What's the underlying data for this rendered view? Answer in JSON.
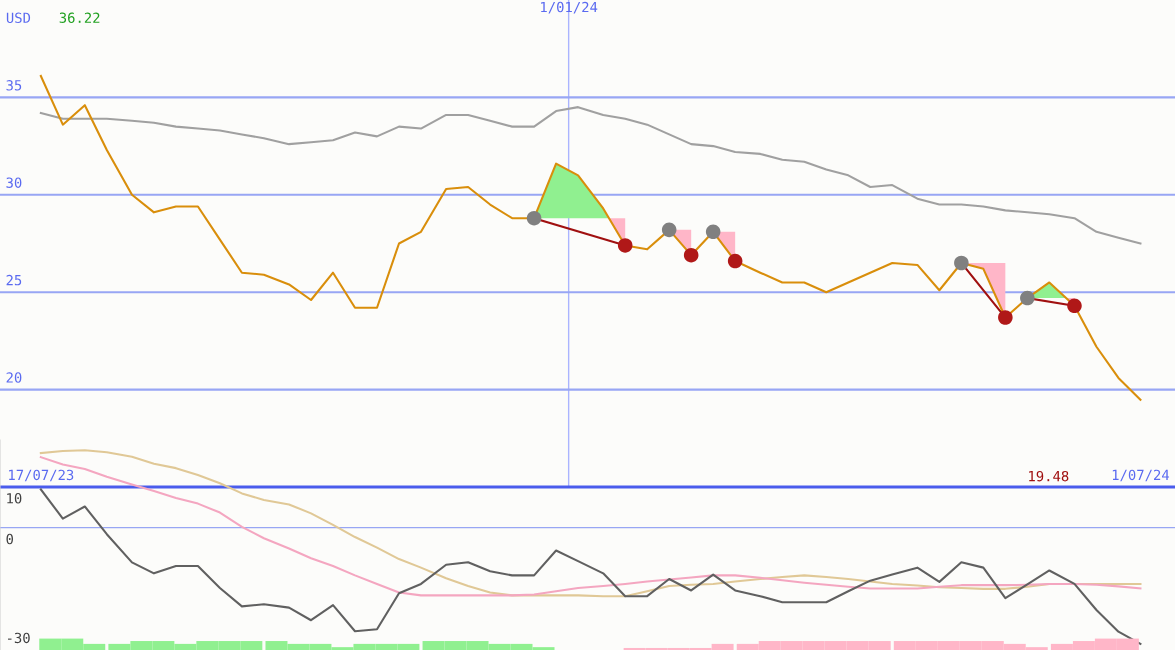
{
  "chart_data": [
    {
      "type": "line",
      "ylabel": "USD",
      "annotations": [
        "36.22",
        "19.48"
      ],
      "x": [
        "2023-07-17",
        "2023-07-24",
        "2023-07-31",
        "2023-08-07",
        "2023-08-15",
        "2023-08-22",
        "2023-08-29",
        "2023-09-05",
        "2023-09-12",
        "2023-09-19",
        "2023-09-26",
        "2023-10-04",
        "2023-10-11",
        "2023-10-18",
        "2023-10-25",
        "2023-11-01",
        "2023-11-08",
        "2023-11-15",
        "2023-11-23",
        "2023-11-30",
        "2023-12-07",
        "2023-12-14",
        "2023-12-21",
        "2023-12-28",
        "2024-01-04",
        "2024-01-12",
        "2024-01-19",
        "2024-01-26",
        "2024-02-02",
        "2024-02-09",
        "2024-02-16",
        "2024-02-23",
        "2024-03-02",
        "2024-03-09",
        "2024-03-16",
        "2024-03-23",
        "2024-03-30",
        "2024-04-06",
        "2024-04-13",
        "2024-04-21",
        "2024-04-28",
        "2024-05-05",
        "2024-05-12",
        "2024-05-19",
        "2024-05-26",
        "2024-06-02",
        "2024-06-10",
        "2024-06-17",
        "2024-06-24",
        "2024-07-01"
      ],
      "series": [
        {
          "color": "#a0a0a0",
          "values": [
            34.2,
            33.9,
            33.9,
            33.9,
            33.8,
            33.7,
            33.5,
            33.4,
            33.3,
            33.1,
            32.9,
            32.6,
            32.7,
            32.8,
            33.2,
            33.0,
            33.5,
            33.4,
            34.1,
            34.1,
            33.8,
            33.5,
            33.5,
            34.3,
            34.5,
            34.1,
            33.9,
            33.6,
            33.1,
            32.6,
            32.5,
            32.2,
            32.1,
            31.8,
            31.7,
            31.3,
            31.0,
            30.4,
            30.5,
            29.8,
            29.5,
            29.5,
            29.4,
            29.2,
            29.1,
            29.0,
            28.8,
            28.1,
            27.8,
            27.5
          ]
        },
        {
          "color": "#d98e0b",
          "values": [
            36.1,
            33.6,
            34.6,
            32.3,
            30.0,
            29.1,
            29.4,
            29.4,
            27.7,
            26.0,
            25.9,
            25.4,
            24.6,
            26.0,
            24.2,
            24.2,
            27.5,
            28.1,
            30.3,
            30.4,
            29.5,
            28.8,
            28.8,
            31.6,
            31.0,
            29.3,
            27.4,
            27.2,
            28.2,
            26.9,
            28.1,
            26.6,
            26.0,
            25.5,
            25.5,
            25.0,
            25.5,
            26.0,
            26.5,
            26.4,
            25.1,
            26.5,
            26.2,
            23.7,
            24.7,
            25.5,
            24.3,
            22.2,
            20.6,
            19.48
          ]
        },
        {
          "color": "#a01010",
          "x": [
            "2023-12-21",
            "2024-01-19"
          ],
          "values": [
            28.8,
            27.4
          ]
        },
        {
          "color": "#a01010",
          "x": [
            "2024-05-05",
            "2024-05-19"
          ],
          "values": [
            26.5,
            23.7
          ]
        },
        {
          "color": "#a01010",
          "x": [
            "2024-05-26",
            "2024-06-10"
          ],
          "values": [
            24.7,
            24.3
          ]
        },
        {
          "type": "scatter",
          "marker": "circle",
          "color": "#808080",
          "x": [
            "2023-12-21",
            "2024-02-02",
            "2024-02-16",
            "2024-05-05",
            "2024-05-26"
          ],
          "values": [
            28.8,
            28.2,
            28.1,
            26.5,
            24.7
          ]
        },
        {
          "type": "scatter",
          "marker": "circle",
          "color": "#b01818",
          "x": [
            "2024-01-19",
            "2024-02-09",
            "2024-02-23",
            "2024-05-19",
            "2024-06-10"
          ],
          "values": [
            27.4,
            26.9,
            26.6,
            23.7,
            24.3
          ]
        }
      ],
      "xlim": [
        "2023-07-04",
        "2024-07-12"
      ],
      "xticks": [
        {
          "value": "2023-07-17",
          "label": "17/07/23"
        },
        {
          "value": "2024-07-01",
          "label": "1/07/24"
        }
      ],
      "ylim": [
        15,
        40
      ],
      "yticks": [
        20,
        25,
        30,
        35
      ],
      "grid": "y",
      "ref_lines": [
        {
          "axis": "x",
          "value": "2024-01-01",
          "label": "1/01/24",
          "color": "#aab4ff"
        }
      ]
    },
    {
      "type": "line",
      "tick_labels": "y",
      "x": [
        "2023-07-17",
        "2023-07-24",
        "2023-07-31",
        "2023-08-07",
        "2023-08-15",
        "2023-08-22",
        "2023-08-29",
        "2023-09-05",
        "2023-09-12",
        "2023-09-19",
        "2023-09-26",
        "2023-10-04",
        "2023-10-11",
        "2023-10-18",
        "2023-10-25",
        "2023-11-01",
        "2023-11-08",
        "2023-11-15",
        "2023-11-23",
        "2023-11-30",
        "2023-12-07",
        "2023-12-14",
        "2023-12-21",
        "2023-12-28",
        "2024-01-04",
        "2024-01-12",
        "2024-01-19",
        "2024-01-26",
        "2024-02-02",
        "2024-02-09",
        "2024-02-16",
        "2024-02-23",
        "2024-03-02",
        "2024-03-09",
        "2024-03-16",
        "2024-03-23",
        "2024-03-30",
        "2024-04-06",
        "2024-04-13",
        "2024-04-21",
        "2024-04-28",
        "2024-05-05",
        "2024-05-12",
        "2024-05-19",
        "2024-05-26",
        "2024-06-02",
        "2024-06-10",
        "2024-06-17",
        "2024-06-24",
        "2024-07-01"
      ],
      "series": [
        {
          "color": "#e0c896",
          "values": [
            18.3,
            18.8,
            19.0,
            18.5,
            17.4,
            15.7,
            14.6,
            12.9,
            10.9,
            8.4,
            6.8,
            5.7,
            3.5,
            0.7,
            -2.3,
            -4.9,
            -7.7,
            -9.8,
            -12.4,
            -14.3,
            -15.9,
            -16.6,
            -16.6,
            -16.6,
            -16.6,
            -16.8,
            -16.8,
            -15.6,
            -14.3,
            -14.0,
            -13.8,
            -13.2,
            -12.6,
            -12.1,
            -11.7,
            -12.1,
            -12.6,
            -13.2,
            -13.8,
            -14.2,
            -14.6,
            -14.8,
            -15.0,
            -15.0,
            -14.5,
            -13.8,
            -13.8,
            -13.8,
            -13.8,
            -13.8
          ]
        },
        {
          "color": "#f4a6c0",
          "values": [
            17.3,
            15.5,
            14.4,
            12.5,
            10.6,
            9.0,
            7.3,
            5.9,
            3.7,
            0.2,
            -2.6,
            -5.1,
            -7.5,
            -9.4,
            -11.7,
            -13.8,
            -15.9,
            -16.6,
            -16.6,
            -16.6,
            -16.6,
            -16.6,
            -16.4,
            -15.6,
            -14.8,
            -14.3,
            -13.8,
            -13.2,
            -12.7,
            -12.2,
            -11.7,
            -11.7,
            -12.3,
            -12.9,
            -13.5,
            -14.0,
            -14.5,
            -14.9,
            -14.9,
            -14.9,
            -14.5,
            -14.1,
            -14.1,
            -14.1,
            -14.0,
            -13.8,
            -13.8,
            -14.0,
            -14.4,
            -14.9
          ]
        },
        {
          "color": "#606060",
          "values": [
            9.4,
            2.2,
            5.2,
            -1.6,
            -8.5,
            -11.2,
            -9.4,
            -9.4,
            -14.8,
            -19.3,
            -18.8,
            -19.6,
            -22.7,
            -19.0,
            -25.4,
            -24.9,
            -16.1,
            -13.8,
            -9.1,
            -8.5,
            -10.7,
            -11.7,
            -11.7,
            -5.6,
            -8.2,
            -11.2,
            -16.8,
            -16.8,
            -12.6,
            -15.4,
            -11.5,
            -15.4,
            -16.8,
            -18.3,
            -18.3,
            -18.3,
            -15.6,
            -13.0,
            -11.5,
            -9.8,
            -13.3,
            -8.5,
            -9.8,
            -17.3,
            -13.9,
            -10.5,
            -13.8,
            -20.2,
            -25.5,
            -28.5
          ]
        }
      ],
      "xlim": [
        "2023-07-04",
        "2024-07-12"
      ],
      "ylim": [
        -30,
        21.5
      ],
      "yticks": [
        10,
        0,
        -30
      ],
      "ref_lines": [
        {
          "axis": "y",
          "value": 0,
          "color": "#98a6f4"
        }
      ]
    },
    {
      "type": "bar",
      "tick_labels": false,
      "x": [
        "2023-07-20",
        "2023-07-27",
        "2023-08-03",
        "2023-08-11",
        "2023-08-18",
        "2023-08-25",
        "2023-09-01",
        "2023-09-08",
        "2023-09-15",
        "2023-09-22",
        "2023-09-30",
        "2023-10-07",
        "2023-10-14",
        "2023-10-21",
        "2023-10-28",
        "2023-11-04",
        "2023-11-11",
        "2023-11-19",
        "2023-11-26",
        "2023-12-03",
        "2023-12-10",
        "2023-12-17",
        "2023-12-24",
        "2023-12-31",
        "2024-01-08",
        "2024-01-15",
        "2024-01-22",
        "2024-01-29",
        "2024-02-05",
        "2024-02-12",
        "2024-02-19",
        "2024-02-27",
        "2024-03-05",
        "2024-03-12",
        "2024-03-19",
        "2024-03-26",
        "2024-04-02",
        "2024-04-09",
        "2024-04-17",
        "2024-04-24",
        "2024-05-01",
        "2024-05-08",
        "2024-05-15",
        "2024-05-22",
        "2024-05-29",
        "2024-06-06",
        "2024-06-13",
        "2024-06-20",
        "2024-06-27"
      ],
      "values": [
        2.8,
        2.8,
        1.5,
        1.5,
        2.2,
        2.2,
        1.5,
        2.2,
        2.2,
        2.2,
        2.2,
        1.5,
        1.5,
        0.7,
        1.5,
        1.5,
        1.5,
        2.2,
        2.2,
        2.2,
        1.5,
        1.5,
        0.7,
        null,
        null,
        null,
        0.5,
        0.5,
        0.5,
        0.5,
        1.5,
        1.5,
        2.2,
        2.2,
        2.2,
        2.2,
        2.2,
        2.2,
        2.2,
        2.2,
        2.2,
        2.2,
        2.2,
        1.5,
        0.7,
        1.5,
        2.2,
        2.8,
        2.8
      ],
      "base": [
        -30,
        -30,
        -30,
        -30,
        -30,
        -30,
        -30,
        -30,
        -30,
        -30,
        -30,
        -30,
        -30,
        -30,
        -30,
        -30,
        -30,
        -30,
        -30,
        -30,
        -30,
        -30,
        -30,
        null,
        null,
        null,
        -30,
        -30,
        -30,
        -30,
        -30,
        -30,
        -30,
        -30,
        -30,
        -30,
        -30,
        -30,
        -30,
        -30,
        -30,
        -30,
        -30,
        -30,
        -30,
        -30,
        -30,
        -30,
        -30
      ],
      "colors": [
        "#90f090",
        "#90f090",
        "#90f090",
        "#90f090",
        "#90f090",
        "#90f090",
        "#90f090",
        "#90f090",
        "#90f090",
        "#90f090",
        "#90f090",
        "#90f090",
        "#90f090",
        "#90f090",
        "#90f090",
        "#90f090",
        "#90f090",
        "#90f090",
        "#90f090",
        "#90f090",
        "#90f090",
        "#90f090",
        "#90f090",
        null,
        null,
        null,
        "#ffb6c8",
        "#ffb6c8",
        "#ffb6c8",
        "#ffb6c8",
        "#ffb6c8",
        "#ffb6c8",
        "#ffb6c8",
        "#ffb6c8",
        "#ffb6c8",
        "#ffb6c8",
        "#ffb6c8",
        "#ffb6c8",
        "#ffb6c8",
        "#ffb6c8",
        "#ffb6c8",
        "#ffb6c8",
        "#ffb6c8",
        "#ffb6c8",
        "#ffb6c8",
        "#ffb6c8",
        "#ffb6c8",
        "#ffb6c8",
        "#ffb6c8"
      ],
      "xlim": [
        "2023-07-04",
        "2024-07-12"
      ],
      "ylim": [
        -30,
        21.5
      ]
    }
  ]
}
